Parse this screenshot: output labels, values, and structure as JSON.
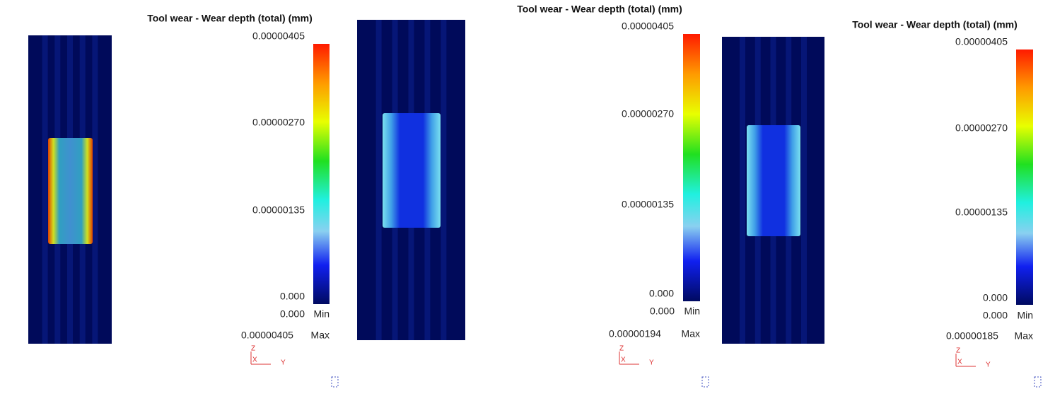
{
  "panels": [
    {
      "title": "Tool wear - Wear depth (total) (mm)",
      "scale": [
        "0.00000405",
        "0.00000270",
        "0.00000135",
        "0.000"
      ],
      "min_value": "0.000",
      "min_label": "Min",
      "max_value": "0.00000405",
      "max_label": "Max",
      "axes": [
        "Z",
        "X",
        "Y"
      ]
    },
    {
      "title": "Tool wear - Wear depth (total) (mm)",
      "scale": [
        "0.00000405",
        "0.00000270",
        "0.00000135",
        "0.000"
      ],
      "min_value": "0.000",
      "min_label": "Min",
      "max_value": "0.00000194",
      "max_label": "Max",
      "axes": [
        "Z",
        "X",
        "Y"
      ]
    },
    {
      "title": "Tool wear - Wear depth (total) (mm)",
      "scale": [
        "0.00000405",
        "0.00000270",
        "0.00000135",
        "0.000"
      ],
      "min_value": "0.000",
      "min_label": "Min",
      "max_value": "0.00000185",
      "max_label": "Max",
      "axes": [
        "Z",
        "X",
        "Y"
      ]
    }
  ]
}
